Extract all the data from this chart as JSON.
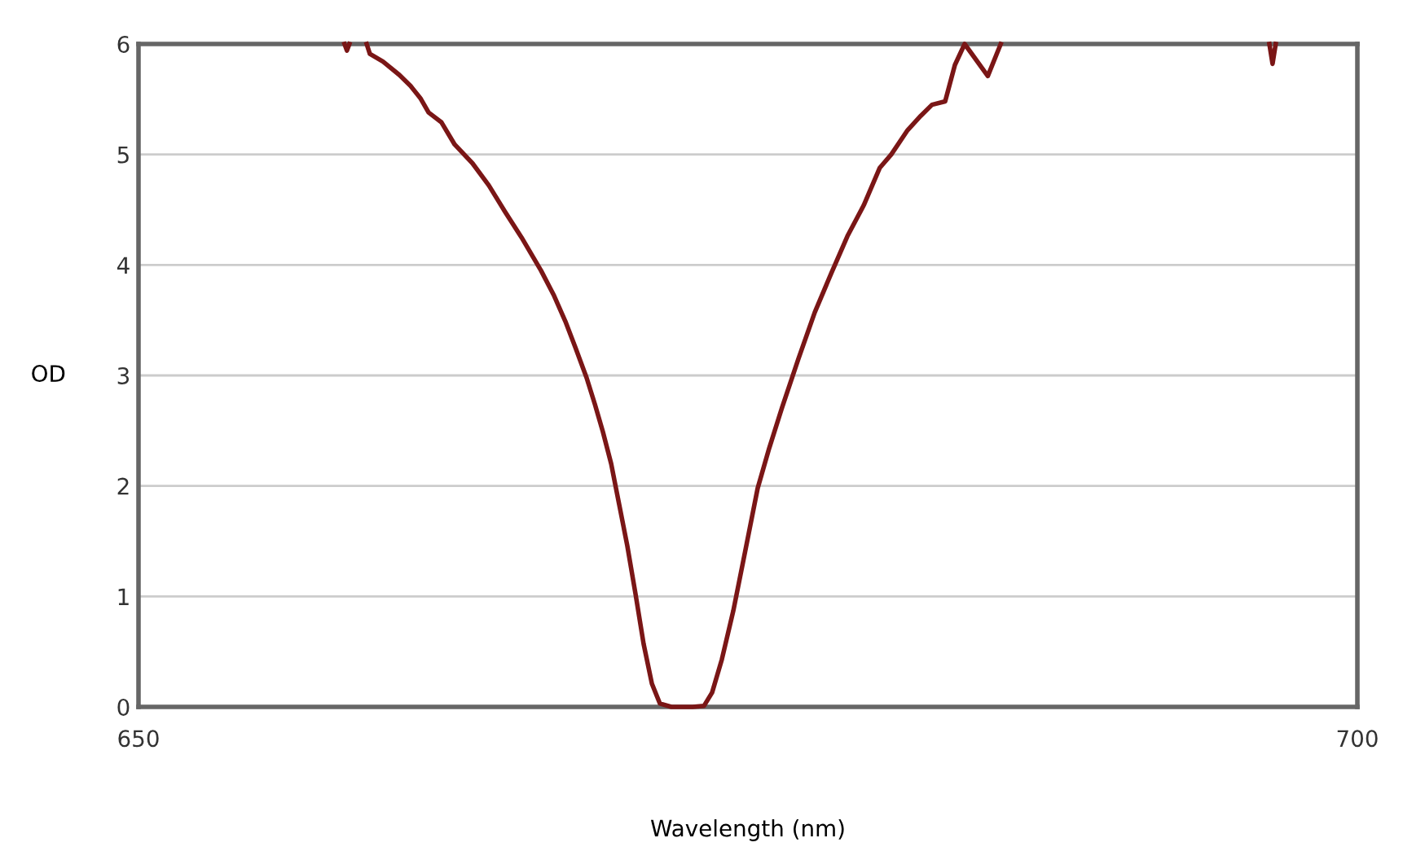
{
  "chart_data": {
    "type": "line",
    "xlabel": "Wavelength (nm)",
    "ylabel": "OD",
    "xlim": [
      650,
      700
    ],
    "ylim": [
      0,
      6
    ],
    "xticks": [
      650,
      700
    ],
    "yticks": [
      0,
      1,
      2,
      3,
      4,
      5,
      6
    ],
    "grid": "y",
    "legend": false,
    "series": [
      {
        "color": "#7a1616",
        "x": [
          658.45,
          658.55,
          658.65,
          null,
          659.36,
          659.49,
          660.03,
          660.7,
          661.16,
          661.56,
          661.9,
          662.43,
          662.97,
          663.7,
          664.37,
          665.04,
          665.71,
          666.51,
          667.05,
          667.51,
          667.91,
          668.38,
          668.72,
          669.05,
          669.39,
          669.72,
          670.05,
          670.39,
          670.72,
          671.06,
          671.39,
          671.86,
          672.73,
          673.2,
          673.53,
          673.93,
          674.4,
          674.87,
          675.4,
          675.87,
          676.4,
          677.07,
          677.74,
          678.41,
          679.08,
          679.75,
          680.41,
          680.88,
          681.55,
          682.09,
          682.55,
          683.09,
          683.49,
          683.89,
          684.84,
          685.37,
          null,
          696.39,
          696.52,
          696.65
        ],
        "values": [
          6,
          5.94,
          6,
          null,
          6,
          5.91,
          5.84,
          5.72,
          5.62,
          5.51,
          5.38,
          5.29,
          5.09,
          4.92,
          4.72,
          4.48,
          4.25,
          3.95,
          3.72,
          3.49,
          3.26,
          2.98,
          2.74,
          2.49,
          2.2,
          1.83,
          1.46,
          1.02,
          0.57,
          0.21,
          0.03,
          0,
          0,
          0.01,
          0.13,
          0.43,
          0.87,
          1.39,
          1.98,
          2.34,
          2.71,
          3.15,
          3.57,
          3.92,
          4.26,
          4.54,
          4.88,
          5,
          5.22,
          5.35,
          5.45,
          5.48,
          5.81,
          6,
          5.71,
          6,
          null,
          6,
          5.82,
          6
        ]
      }
    ]
  }
}
